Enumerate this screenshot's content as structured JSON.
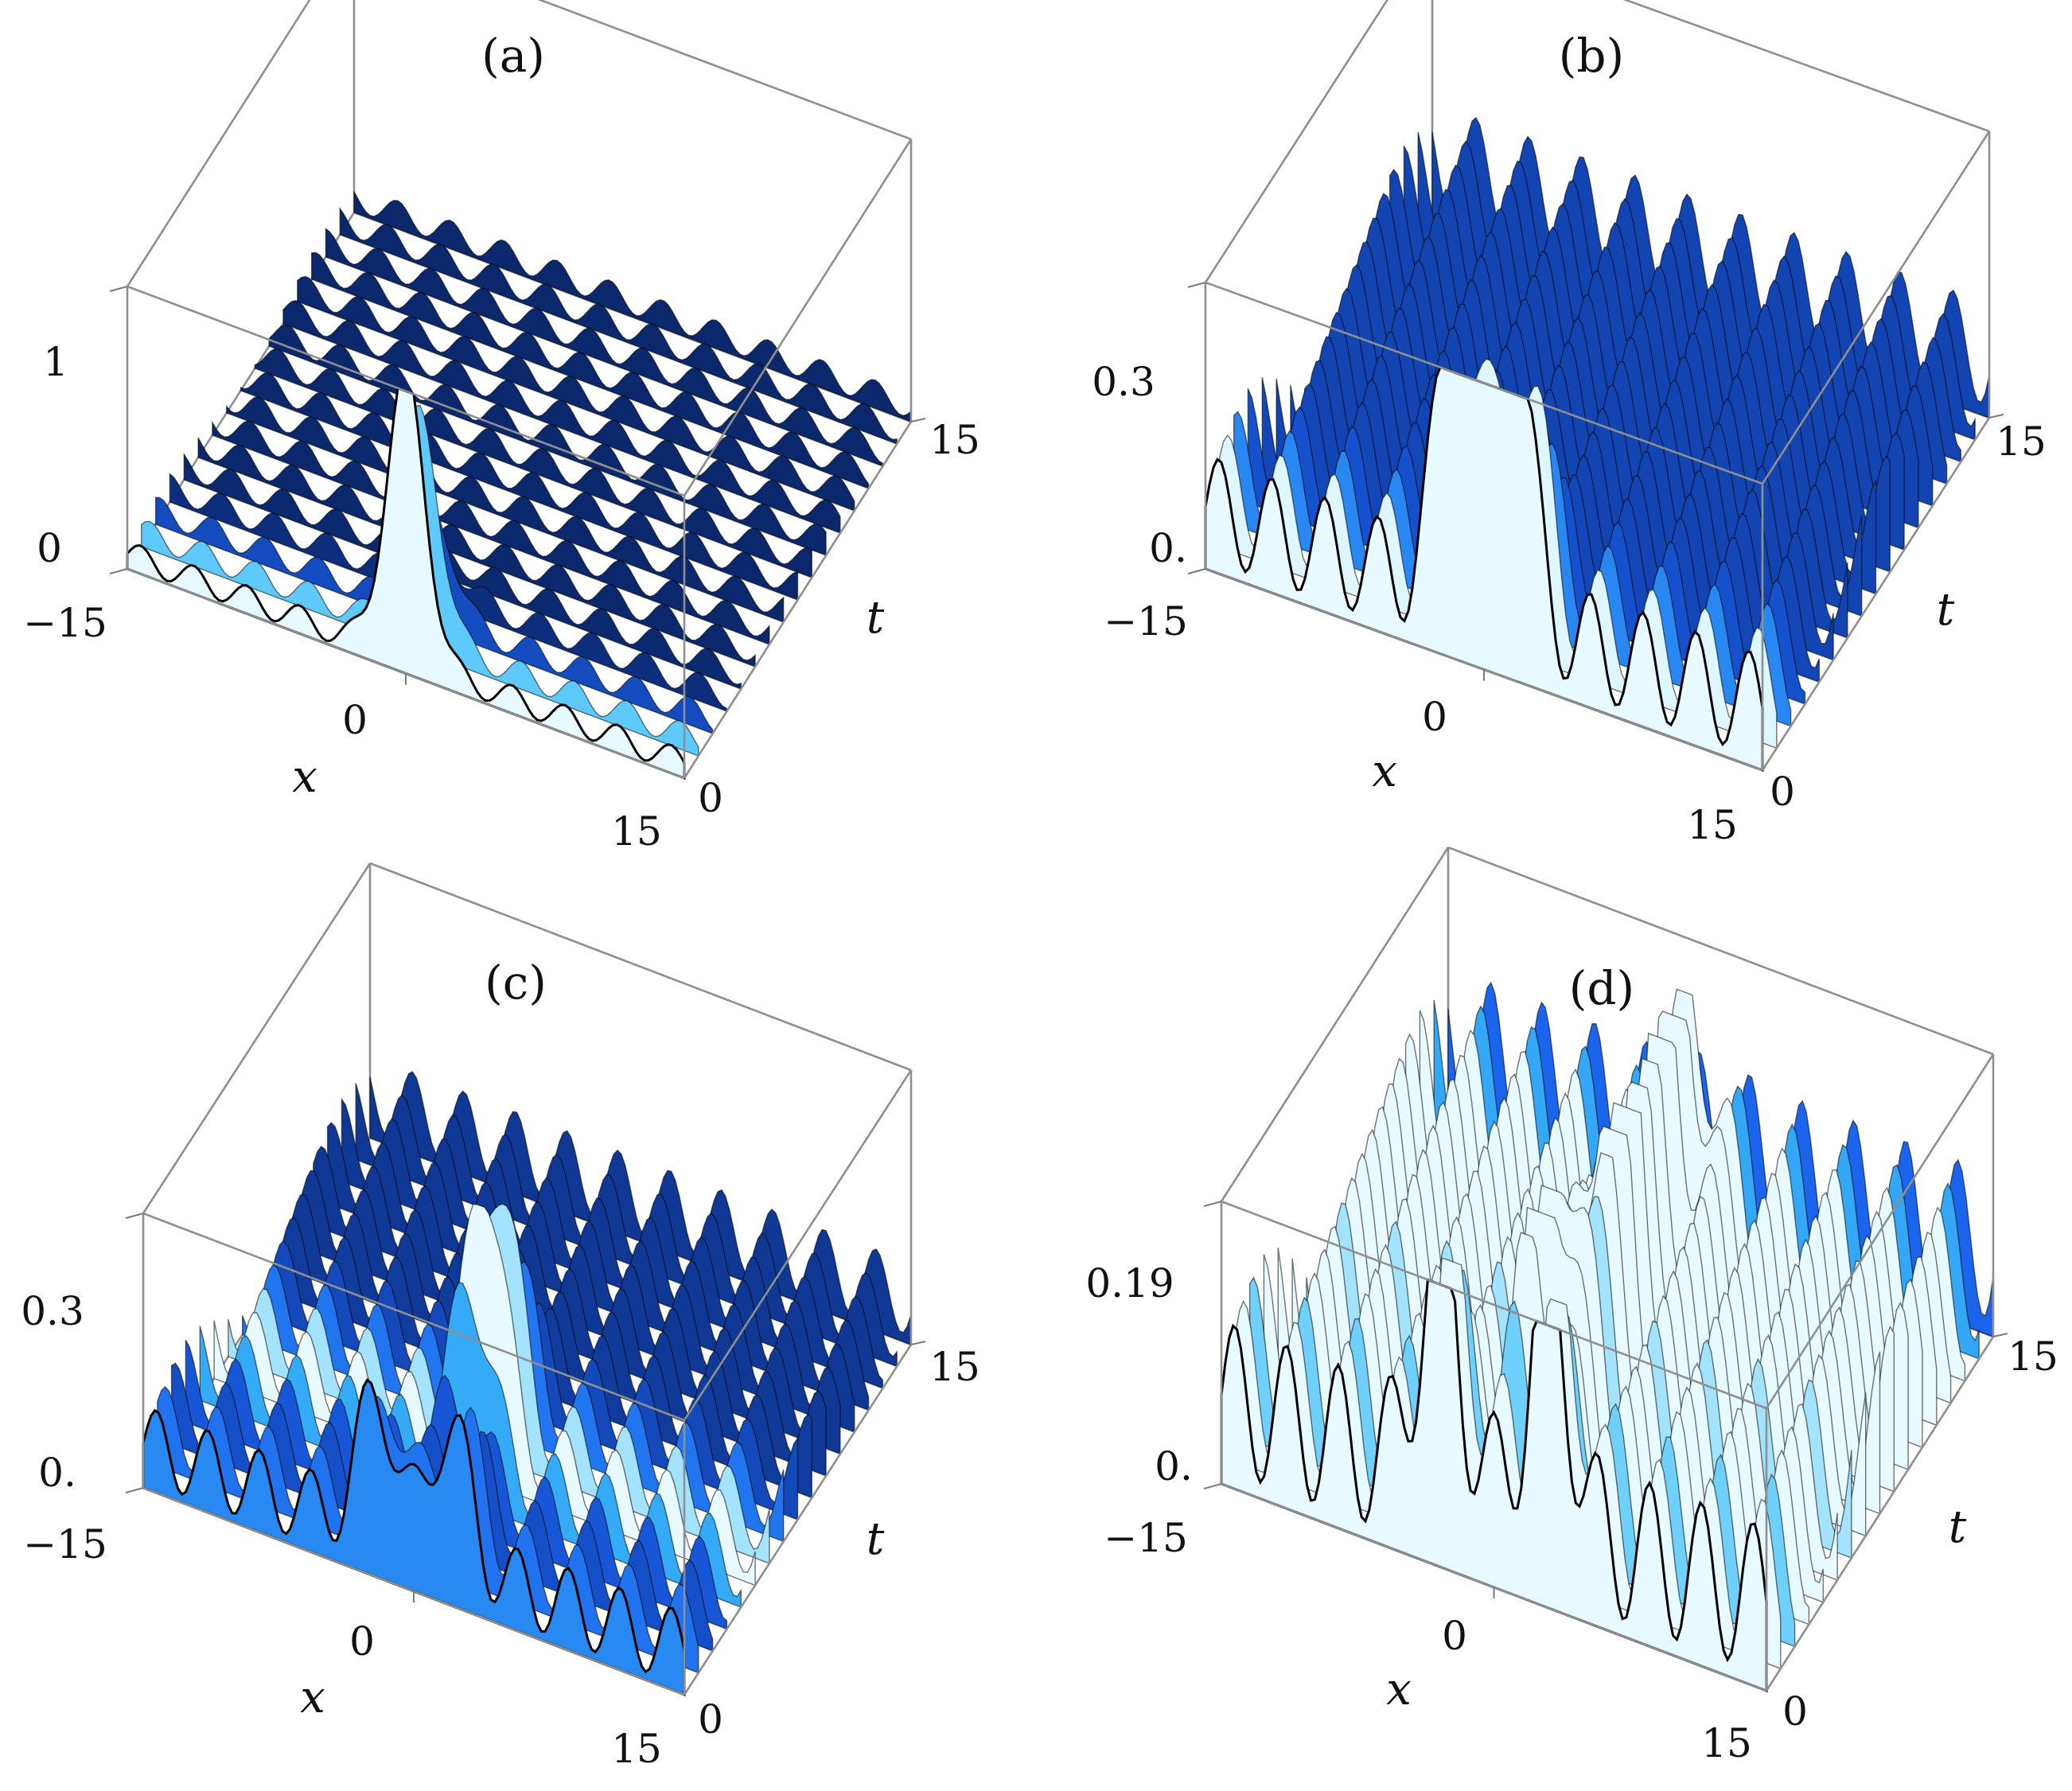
{
  "chart_data": [
    {
      "type": "surface3d",
      "title": "(a)",
      "xlabel": "x",
      "ylabel": "t",
      "xlim": [
        -15,
        15
      ],
      "tlim": [
        0,
        15
      ],
      "zlim": [
        0,
        1
      ],
      "x_ticks": [
        "−15",
        "0",
        "15"
      ],
      "t_ticks": [
        "0",
        "15"
      ],
      "z_ticks": [
        "0",
        "1"
      ],
      "peaks": [
        {
          "x": 0,
          "t": 0,
          "height": 1.0
        }
      ],
      "background_ripple_amplitude": 0.1,
      "colormap": "dark blue to cyan"
    },
    {
      "type": "surface3d",
      "title": "(b)",
      "xlabel": "x",
      "ylabel": "t",
      "xlim": [
        -15,
        15
      ],
      "tlim": [
        0,
        15
      ],
      "zlim": [
        0,
        0.3
      ],
      "x_ticks": [
        "−15",
        "0",
        "15"
      ],
      "t_ticks": [
        "0",
        "15"
      ],
      "z_ticks": [
        "0.",
        "0.3"
      ],
      "peaks": [
        {
          "x": -1.5,
          "t": 0,
          "height": 0.3
        },
        {
          "x": 1.5,
          "t": 0,
          "height": 0.3
        }
      ],
      "background_ripple_amplitude": 0.12,
      "colormap": "dark blue to cyan"
    },
    {
      "type": "surface3d",
      "title": "(c)",
      "xlabel": "x",
      "ylabel": "t",
      "xlim": [
        -15,
        15
      ],
      "tlim": [
        0,
        15
      ],
      "zlim": [
        0,
        0.3
      ],
      "x_ticks": [
        "−15",
        "0",
        "15"
      ],
      "t_ticks": [
        "0",
        "15"
      ],
      "z_ticks": [
        "0.",
        "0.3"
      ],
      "peaks": [
        {
          "x": -2,
          "t": 0,
          "height": 0.15
        },
        {
          "x": 2,
          "t": 0,
          "height": 0.15
        },
        {
          "x": 0,
          "t": 5,
          "height": 0.3
        }
      ],
      "background_ripple_amplitude": 0.09,
      "colormap": "dark blue to cyan"
    },
    {
      "type": "surface3d",
      "title": "(d)",
      "xlabel": "x",
      "ylabel": "t",
      "xlim": [
        -15,
        15
      ],
      "tlim": [
        0,
        15
      ],
      "zlim": [
        0,
        0.19
      ],
      "x_ticks": [
        "−15",
        "0",
        "15"
      ],
      "t_ticks": [
        "0",
        "15"
      ],
      "z_ticks": [
        "0.",
        "0.19"
      ],
      "peaks": [
        {
          "x": -3,
          "t": 0,
          "height": 0.17
        },
        {
          "x": 3,
          "t": 0,
          "height": 0.17
        },
        {
          "x": 0,
          "t": 4,
          "height": 0.19
        },
        {
          "x": 0,
          "t": 8,
          "height": 0.19
        },
        {
          "x": 0,
          "t": 12,
          "height": 0.19
        }
      ],
      "background_ripple_amplitude": 0.11,
      "colormap": "dark blue to cyan"
    }
  ]
}
